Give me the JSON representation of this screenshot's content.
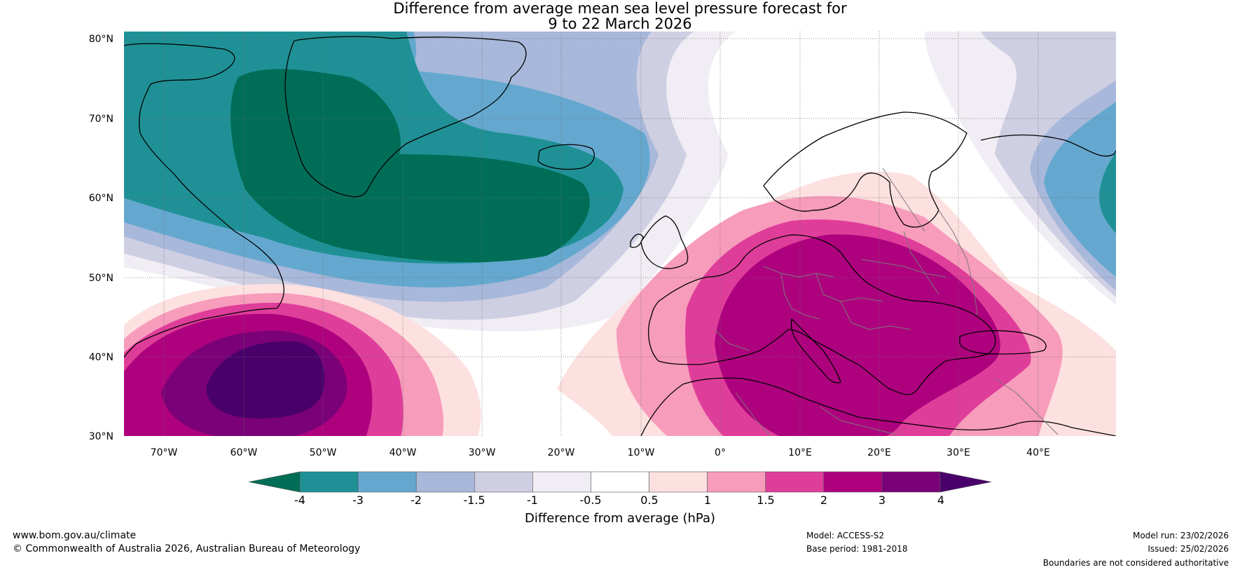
{
  "title": {
    "line1": "Difference from average mean sea level pressure forecast for",
    "line2": "9 to 22 March 2026"
  },
  "axes": {
    "lat_labels": [
      "80°N",
      "70°N",
      "60°N",
      "50°N",
      "40°N",
      "30°N"
    ],
    "lon_labels": [
      "70°W",
      "60°W",
      "50°W",
      "40°W",
      "30°W",
      "20°W",
      "10°W",
      "0°",
      "10°E",
      "20°E",
      "30°E",
      "40°E"
    ]
  },
  "colorbar": {
    "label": "Difference from average (hPa)",
    "ticks": [
      "-4",
      "-3",
      "-2",
      "-1.5",
      "-1",
      "-0.5",
      "0.5",
      "1",
      "1.5",
      "2",
      "3",
      "4"
    ],
    "colors": [
      "#006e57",
      "#1f9196",
      "#65a8cf",
      "#a8b8da",
      "#cfcfe3",
      "#f1edf4",
      "#ffffff",
      "#fde0e0",
      "#f79cbb",
      "#df3d9a",
      "#ae017e",
      "#7a0177",
      "#49006a"
    ]
  },
  "footer": {
    "website": "www.bom.gov.au/climate",
    "copyright": "© Commonwealth of Australia 2026, Australian Bureau of Meteorology",
    "model": "Model: ACCESS-S2",
    "base_period": "Base period: 1981-2018",
    "model_run": "Model run: 23/02/2026",
    "issued": "Issued: 25/02/2026",
    "disclaimer": "Boundaries are not considered authoritative"
  }
}
